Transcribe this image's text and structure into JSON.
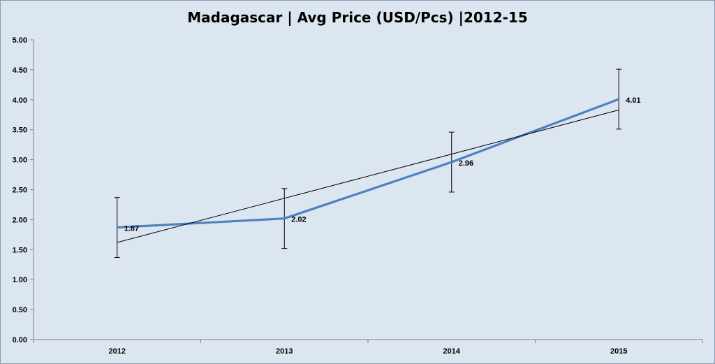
{
  "chart_data": {
    "type": "line",
    "title": "Madagascar  | Avg Price (USD/Pcs) |2012-15",
    "xlabel": "",
    "ylabel": "",
    "categories": [
      "2012",
      "2013",
      "2014",
      "2015"
    ],
    "series": [
      {
        "values": [
          1.87,
          2.02,
          2.96,
          4.01
        ],
        "data_labels": [
          "1.87",
          "2.02",
          "2.96",
          "4.01"
        ],
        "color": "#4f81bd",
        "error_bar": 0.5
      }
    ],
    "trendline": {
      "type": "linear",
      "values": [
        1.62,
        2.36,
        3.09,
        3.83
      ],
      "color": "#000000"
    },
    "ylim": [
      0,
      5
    ],
    "yticks": [
      "0.00",
      "0.50",
      "1.00",
      "1.50",
      "2.00",
      "2.50",
      "3.00",
      "3.50",
      "4.00",
      "4.50",
      "5.00"
    ],
    "grid": false,
    "legend": "none",
    "background": "#dce6f1"
  }
}
